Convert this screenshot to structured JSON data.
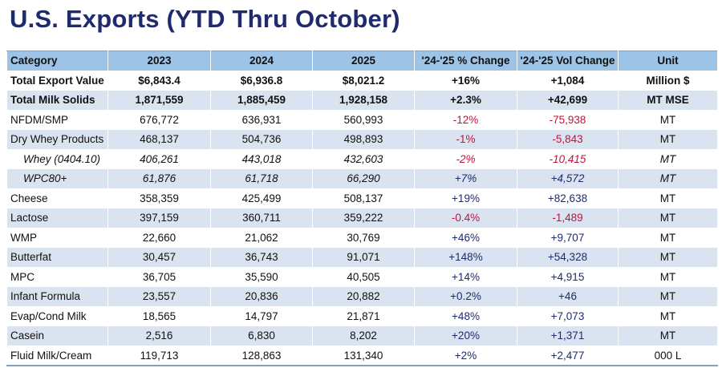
{
  "title": "U.S. Exports (YTD Thru October)",
  "colors": {
    "title": "#1f2b6e",
    "header_bg": "#9dc3e6",
    "row_alt_bg": "#dae3f0",
    "negative": "#c0143c",
    "positive": "#1f2b6e"
  },
  "table": {
    "headers": [
      "Category",
      "2023",
      "2024",
      "2025",
      "'24-'25 % Change",
      "'24-'25 Vol Change",
      "Unit"
    ],
    "rows": [
      {
        "category": "Total Export Value",
        "y2023": "$6,843.4",
        "y2024": "$6,936.8",
        "y2025": "$8,021.2",
        "pct_change": "+16%",
        "vol_change": "+1,084",
        "unit": "Million $"
      },
      {
        "category": "Total Milk Solids",
        "y2023": "1,871,559",
        "y2024": "1,885,459",
        "y2025": "1,928,158",
        "pct_change": "+2.3%",
        "vol_change": "+42,699",
        "unit": "MT MSE"
      },
      {
        "category": "NFDM/SMP",
        "y2023": "676,772",
        "y2024": "636,931",
        "y2025": "560,993",
        "pct_change": "-12%",
        "vol_change": "-75,938",
        "unit": "MT"
      },
      {
        "category": "Dry Whey Products",
        "y2023": "468,137",
        "y2024": "504,736",
        "y2025": "498,893",
        "pct_change": "-1%",
        "vol_change": "-5,843",
        "unit": "MT"
      },
      {
        "category": "Whey (0404.10)",
        "y2023": "406,261",
        "y2024": "443,018",
        "y2025": "432,603",
        "pct_change": "-2%",
        "vol_change": "-10,415",
        "unit": "MT"
      },
      {
        "category": "WPC80+",
        "y2023": "61,876",
        "y2024": "61,718",
        "y2025": "66,290",
        "pct_change": "+7%",
        "vol_change": "+4,572",
        "unit": "MT"
      },
      {
        "category": "Cheese",
        "y2023": "358,359",
        "y2024": "425,499",
        "y2025": "508,137",
        "pct_change": "+19%",
        "vol_change": "+82,638",
        "unit": "MT"
      },
      {
        "category": "Lactose",
        "y2023": "397,159",
        "y2024": "360,711",
        "y2025": "359,222",
        "pct_change": "-0.4%",
        "vol_change": "-1,489",
        "unit": "MT"
      },
      {
        "category": "WMP",
        "y2023": "22,660",
        "y2024": "21,062",
        "y2025": "30,769",
        "pct_change": "+46%",
        "vol_change": "+9,707",
        "unit": "MT"
      },
      {
        "category": "Butterfat",
        "y2023": "30,457",
        "y2024": "36,743",
        "y2025": "91,071",
        "pct_change": "+148%",
        "vol_change": "+54,328",
        "unit": "MT"
      },
      {
        "category": "MPC",
        "y2023": "36,705",
        "y2024": "35,590",
        "y2025": "40,505",
        "pct_change": "+14%",
        "vol_change": "+4,915",
        "unit": "MT"
      },
      {
        "category": "Infant Formula",
        "y2023": "23,557",
        "y2024": "20,836",
        "y2025": "20,882",
        "pct_change": "+0.2%",
        "vol_change": "+46",
        "unit": "MT"
      },
      {
        "category": "Evap/Cond Milk",
        "y2023": "18,565",
        "y2024": "14,797",
        "y2025": "21,871",
        "pct_change": "+48%",
        "vol_change": "+7,073",
        "unit": "MT"
      },
      {
        "category": "Casein",
        "y2023": "2,516",
        "y2024": "6,830",
        "y2025": "8,202",
        "pct_change": "+20%",
        "vol_change": "+1,371",
        "unit": "MT"
      },
      {
        "category": "Fluid Milk/Cream",
        "y2023": "119,713",
        "y2024": "128,863",
        "y2025": "131,340",
        "pct_change": "+2%",
        "vol_change": "+2,477",
        "unit": "000 L"
      }
    ]
  }
}
